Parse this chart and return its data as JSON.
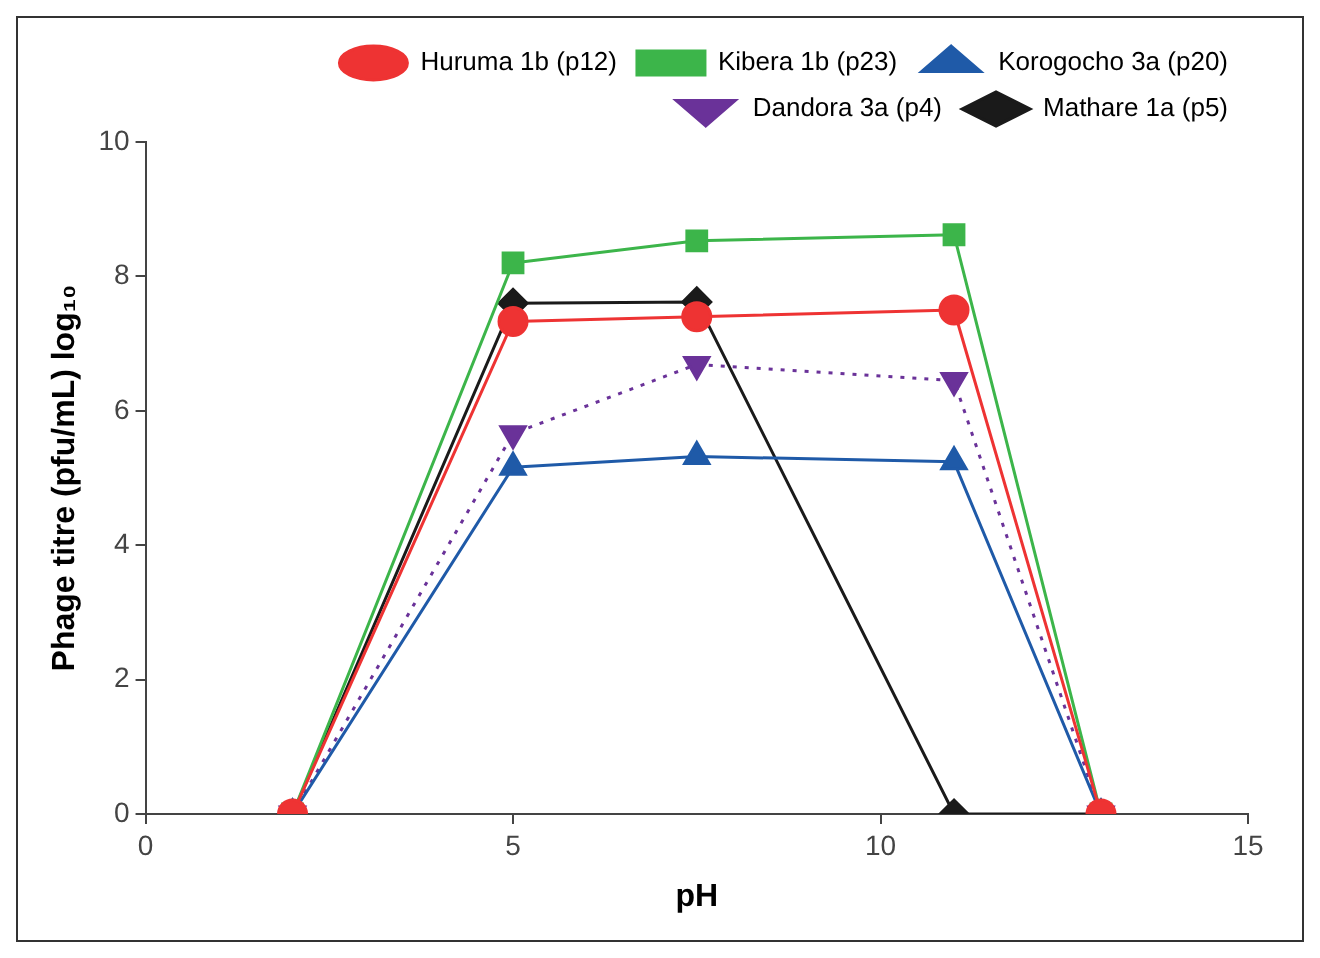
{
  "chart_data": {
    "type": "line",
    "xlabel": "pH",
    "ylabel": "Phage titre (pfu/mL) log₁₀",
    "x": [
      2,
      5,
      7.5,
      11,
      13
    ],
    "xlim": [
      0,
      15
    ],
    "xticks": [
      0,
      5,
      10,
      15
    ],
    "ylim": [
      0,
      10
    ],
    "yticks": [
      0,
      2,
      4,
      6,
      8,
      10
    ],
    "grid": false,
    "legend": "top",
    "series": [
      {
        "name": "Huruma 1b (p12)",
        "color": "#ee3333",
        "marker": "circle",
        "line_style": "solid",
        "values": [
          0,
          7.33,
          7.4,
          7.5,
          0
        ]
      },
      {
        "name": "Kibera 1b (p23)",
        "color": "#3cb54a",
        "marker": "square",
        "line_style": "solid",
        "values": [
          0,
          8.2,
          8.53,
          8.62,
          0
        ]
      },
      {
        "name": "Korogocho 3a (p20)",
        "color": "#1f5aa8",
        "marker": "triangle",
        "line_style": "solid",
        "values": [
          0,
          5.16,
          5.32,
          5.24,
          0
        ]
      },
      {
        "name": "Dandora 3a (p4)",
        "color": "#6a3299",
        "marker": "triangle-down",
        "line_style": "dotted",
        "values": [
          0,
          5.66,
          6.69,
          6.45,
          0
        ]
      },
      {
        "name": "Mathare 1a (p5)",
        "color": "#1a1a1a",
        "marker": "diamond",
        "line_style": "solid",
        "values": [
          0,
          7.6,
          7.62,
          0,
          0
        ]
      }
    ]
  }
}
